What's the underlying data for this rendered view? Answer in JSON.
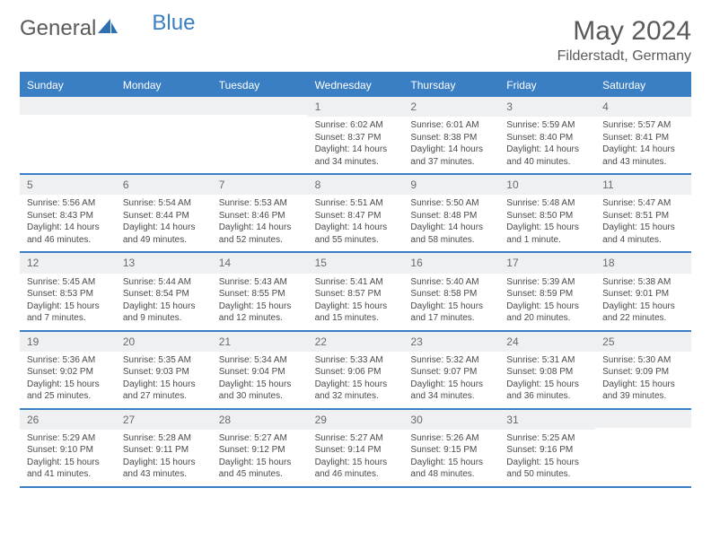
{
  "brand": {
    "text1": "General",
    "text2": "Blue"
  },
  "title": "May 2024",
  "location": "Filderstadt, Germany",
  "colors": {
    "header_bg": "#3a7fc4",
    "header_text": "#ffffff",
    "day_num_bg": "#eef0f2",
    "border": "#3a7fc4",
    "text": "#4a4a4a",
    "title_color": "#5a5a5a",
    "brand_gray": "#5a5a5a",
    "brand_blue": "#3a7fc4"
  },
  "day_headers": [
    "Sunday",
    "Monday",
    "Tuesday",
    "Wednesday",
    "Thursday",
    "Friday",
    "Saturday"
  ],
  "weeks": [
    [
      {
        "empty": true
      },
      {
        "empty": true
      },
      {
        "empty": true
      },
      {
        "num": "1",
        "sunrise": "Sunrise: 6:02 AM",
        "sunset": "Sunset: 8:37 PM",
        "daylight1": "Daylight: 14 hours",
        "daylight2": "and 34 minutes."
      },
      {
        "num": "2",
        "sunrise": "Sunrise: 6:01 AM",
        "sunset": "Sunset: 8:38 PM",
        "daylight1": "Daylight: 14 hours",
        "daylight2": "and 37 minutes."
      },
      {
        "num": "3",
        "sunrise": "Sunrise: 5:59 AM",
        "sunset": "Sunset: 8:40 PM",
        "daylight1": "Daylight: 14 hours",
        "daylight2": "and 40 minutes."
      },
      {
        "num": "4",
        "sunrise": "Sunrise: 5:57 AM",
        "sunset": "Sunset: 8:41 PM",
        "daylight1": "Daylight: 14 hours",
        "daylight2": "and 43 minutes."
      }
    ],
    [
      {
        "num": "5",
        "sunrise": "Sunrise: 5:56 AM",
        "sunset": "Sunset: 8:43 PM",
        "daylight1": "Daylight: 14 hours",
        "daylight2": "and 46 minutes."
      },
      {
        "num": "6",
        "sunrise": "Sunrise: 5:54 AM",
        "sunset": "Sunset: 8:44 PM",
        "daylight1": "Daylight: 14 hours",
        "daylight2": "and 49 minutes."
      },
      {
        "num": "7",
        "sunrise": "Sunrise: 5:53 AM",
        "sunset": "Sunset: 8:46 PM",
        "daylight1": "Daylight: 14 hours",
        "daylight2": "and 52 minutes."
      },
      {
        "num": "8",
        "sunrise": "Sunrise: 5:51 AM",
        "sunset": "Sunset: 8:47 PM",
        "daylight1": "Daylight: 14 hours",
        "daylight2": "and 55 minutes."
      },
      {
        "num": "9",
        "sunrise": "Sunrise: 5:50 AM",
        "sunset": "Sunset: 8:48 PM",
        "daylight1": "Daylight: 14 hours",
        "daylight2": "and 58 minutes."
      },
      {
        "num": "10",
        "sunrise": "Sunrise: 5:48 AM",
        "sunset": "Sunset: 8:50 PM",
        "daylight1": "Daylight: 15 hours",
        "daylight2": "and 1 minute."
      },
      {
        "num": "11",
        "sunrise": "Sunrise: 5:47 AM",
        "sunset": "Sunset: 8:51 PM",
        "daylight1": "Daylight: 15 hours",
        "daylight2": "and 4 minutes."
      }
    ],
    [
      {
        "num": "12",
        "sunrise": "Sunrise: 5:45 AM",
        "sunset": "Sunset: 8:53 PM",
        "daylight1": "Daylight: 15 hours",
        "daylight2": "and 7 minutes."
      },
      {
        "num": "13",
        "sunrise": "Sunrise: 5:44 AM",
        "sunset": "Sunset: 8:54 PM",
        "daylight1": "Daylight: 15 hours",
        "daylight2": "and 9 minutes."
      },
      {
        "num": "14",
        "sunrise": "Sunrise: 5:43 AM",
        "sunset": "Sunset: 8:55 PM",
        "daylight1": "Daylight: 15 hours",
        "daylight2": "and 12 minutes."
      },
      {
        "num": "15",
        "sunrise": "Sunrise: 5:41 AM",
        "sunset": "Sunset: 8:57 PM",
        "daylight1": "Daylight: 15 hours",
        "daylight2": "and 15 minutes."
      },
      {
        "num": "16",
        "sunrise": "Sunrise: 5:40 AM",
        "sunset": "Sunset: 8:58 PM",
        "daylight1": "Daylight: 15 hours",
        "daylight2": "and 17 minutes."
      },
      {
        "num": "17",
        "sunrise": "Sunrise: 5:39 AM",
        "sunset": "Sunset: 8:59 PM",
        "daylight1": "Daylight: 15 hours",
        "daylight2": "and 20 minutes."
      },
      {
        "num": "18",
        "sunrise": "Sunrise: 5:38 AM",
        "sunset": "Sunset: 9:01 PM",
        "daylight1": "Daylight: 15 hours",
        "daylight2": "and 22 minutes."
      }
    ],
    [
      {
        "num": "19",
        "sunrise": "Sunrise: 5:36 AM",
        "sunset": "Sunset: 9:02 PM",
        "daylight1": "Daylight: 15 hours",
        "daylight2": "and 25 minutes."
      },
      {
        "num": "20",
        "sunrise": "Sunrise: 5:35 AM",
        "sunset": "Sunset: 9:03 PM",
        "daylight1": "Daylight: 15 hours",
        "daylight2": "and 27 minutes."
      },
      {
        "num": "21",
        "sunrise": "Sunrise: 5:34 AM",
        "sunset": "Sunset: 9:04 PM",
        "daylight1": "Daylight: 15 hours",
        "daylight2": "and 30 minutes."
      },
      {
        "num": "22",
        "sunrise": "Sunrise: 5:33 AM",
        "sunset": "Sunset: 9:06 PM",
        "daylight1": "Daylight: 15 hours",
        "daylight2": "and 32 minutes."
      },
      {
        "num": "23",
        "sunrise": "Sunrise: 5:32 AM",
        "sunset": "Sunset: 9:07 PM",
        "daylight1": "Daylight: 15 hours",
        "daylight2": "and 34 minutes."
      },
      {
        "num": "24",
        "sunrise": "Sunrise: 5:31 AM",
        "sunset": "Sunset: 9:08 PM",
        "daylight1": "Daylight: 15 hours",
        "daylight2": "and 36 minutes."
      },
      {
        "num": "25",
        "sunrise": "Sunrise: 5:30 AM",
        "sunset": "Sunset: 9:09 PM",
        "daylight1": "Daylight: 15 hours",
        "daylight2": "and 39 minutes."
      }
    ],
    [
      {
        "num": "26",
        "sunrise": "Sunrise: 5:29 AM",
        "sunset": "Sunset: 9:10 PM",
        "daylight1": "Daylight: 15 hours",
        "daylight2": "and 41 minutes."
      },
      {
        "num": "27",
        "sunrise": "Sunrise: 5:28 AM",
        "sunset": "Sunset: 9:11 PM",
        "daylight1": "Daylight: 15 hours",
        "daylight2": "and 43 minutes."
      },
      {
        "num": "28",
        "sunrise": "Sunrise: 5:27 AM",
        "sunset": "Sunset: 9:12 PM",
        "daylight1": "Daylight: 15 hours",
        "daylight2": "and 45 minutes."
      },
      {
        "num": "29",
        "sunrise": "Sunrise: 5:27 AM",
        "sunset": "Sunset: 9:14 PM",
        "daylight1": "Daylight: 15 hours",
        "daylight2": "and 46 minutes."
      },
      {
        "num": "30",
        "sunrise": "Sunrise: 5:26 AM",
        "sunset": "Sunset: 9:15 PM",
        "daylight1": "Daylight: 15 hours",
        "daylight2": "and 48 minutes."
      },
      {
        "num": "31",
        "sunrise": "Sunrise: 5:25 AM",
        "sunset": "Sunset: 9:16 PM",
        "daylight1": "Daylight: 15 hours",
        "daylight2": "and 50 minutes."
      },
      {
        "empty": true
      }
    ]
  ]
}
